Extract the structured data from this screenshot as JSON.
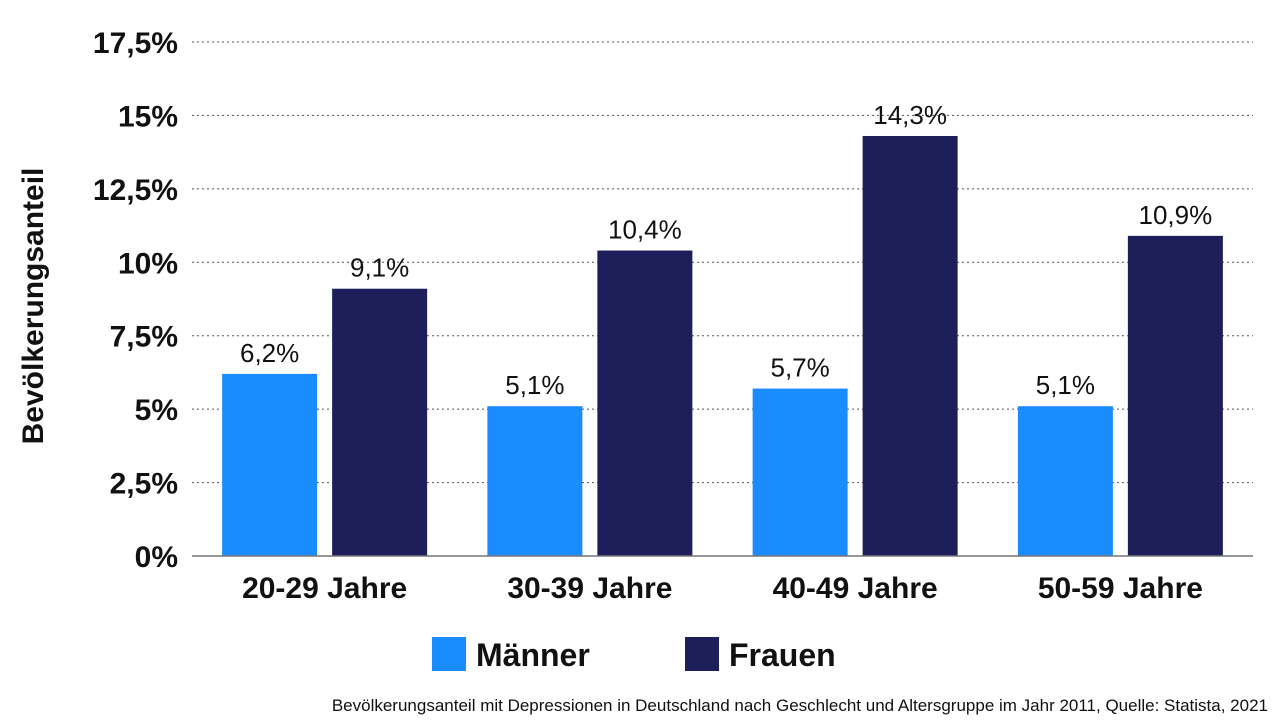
{
  "chart_data": {
    "type": "bar",
    "ylabel": "Bevölkerungsanteil",
    "categories": [
      "20-29 Jahre",
      "30-39 Jahre",
      "40-49 Jahre",
      "50-59 Jahre"
    ],
    "series": [
      {
        "name": "Männer",
        "color": "#1a8cff",
        "values": [
          6.2,
          5.1,
          5.7,
          5.1
        ],
        "labels": [
          "6,2%",
          "5,1%",
          "5,7%",
          "5,1%"
        ]
      },
      {
        "name": "Frauen",
        "color": "#1e1f5a",
        "values": [
          9.1,
          10.4,
          14.3,
          10.9
        ],
        "labels": [
          "9,1%",
          "10,4%",
          "14,3%",
          "10,9%"
        ]
      }
    ],
    "ylim": [
      0,
      17.5
    ],
    "yticks": [
      0,
      2.5,
      5,
      7.5,
      10,
      12.5,
      15,
      17.5
    ],
    "ytick_labels": [
      "0%",
      "2,5%",
      "5%",
      "7,5%",
      "10%",
      "12,5%",
      "15%",
      "17,5%"
    ],
    "grid": true,
    "legend_position": "bottom-center"
  },
  "caption": "Bevölkerungsanteil mit Depressionen in Deutschland nach Geschlecht und Altersgruppe im Jahr 2011, Quelle: Statista, 2021"
}
